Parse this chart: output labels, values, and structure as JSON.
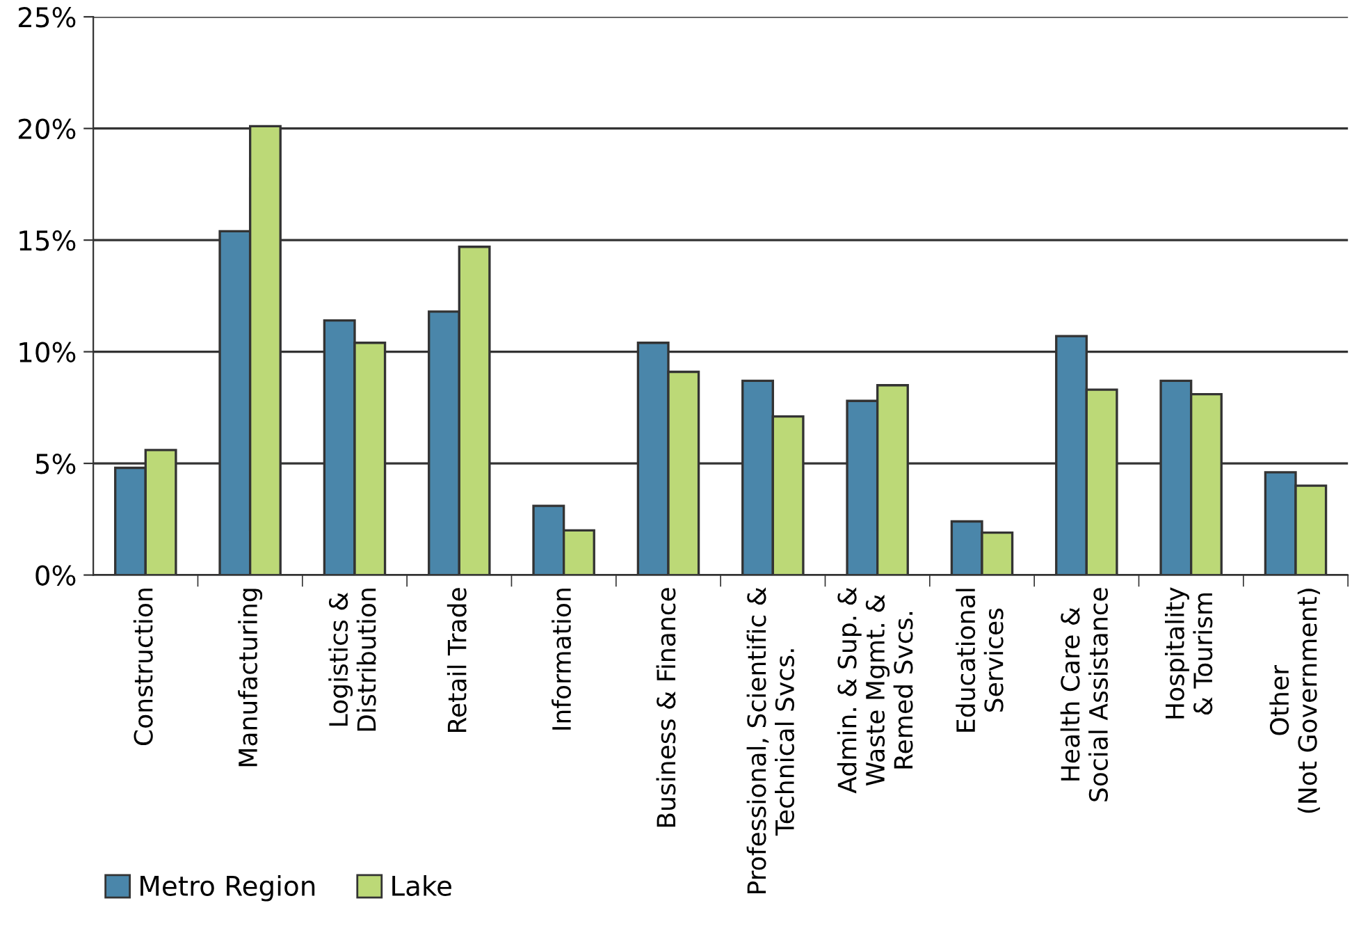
{
  "chart_data": {
    "type": "bar",
    "categories": [
      "Construction",
      "Manufacturing",
      "Logistics &\nDistribution",
      "Retail Trade",
      "Information",
      "Business & Finance",
      "Professional, Scientific &\nTechnical Svcs.",
      "Admin. & Sup. &\nWaste Mgmt. &\nRemed Svcs.",
      "Educational\nServices",
      "Health Care &\nSocial Assistance",
      "Hospitality\n& Tourism",
      "Other\n(Not Government)"
    ],
    "series": [
      {
        "name": "Metro Region",
        "color": "#4a86aa",
        "values": [
          4.8,
          15.4,
          11.4,
          11.8,
          3.1,
          10.4,
          8.7,
          7.8,
          2.4,
          10.7,
          8.7,
          4.6
        ]
      },
      {
        "name": "Lake",
        "color": "#bcd977",
        "values": [
          5.6,
          20.1,
          10.4,
          14.7,
          2.0,
          9.1,
          7.1,
          8.5,
          1.9,
          8.3,
          8.1,
          4.0
        ]
      }
    ],
    "ylim": [
      0,
      25
    ],
    "yticks": [
      {
        "value": 0,
        "label": "0%"
      },
      {
        "value": 5,
        "label": "5%"
      },
      {
        "value": 10,
        "label": "10%"
      },
      {
        "value": 15,
        "label": "15%"
      },
      {
        "value": 20,
        "label": "20%"
      },
      {
        "value": 25,
        "label": "25%"
      }
    ],
    "grid": "y",
    "legend": "bottom left"
  }
}
